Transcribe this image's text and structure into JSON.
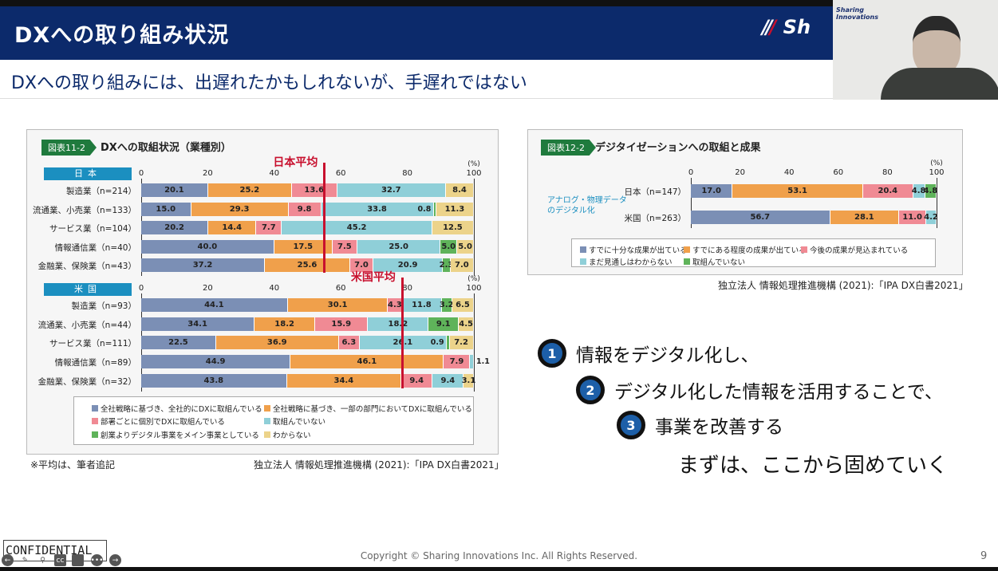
{
  "header": {
    "title": "DXへの取り組み状況",
    "logo": "Sh",
    "subtitle": "DXへの取り組みには、出遅れたかもしれないが、手遅れではない"
  },
  "colors": {
    "blue": "#7b8fb5",
    "orange": "#f0a04b",
    "pink": "#f08a94",
    "cyan": "#8fcfd8",
    "green": "#5fb35a",
    "yellow": "#ecd38a",
    "navy": "#0c2a6b",
    "avg": "#c8102e"
  },
  "webcam": {
    "brand": "Sharing Innovations"
  },
  "chart_data": [
    {
      "type": "bar",
      "stacked": true,
      "orientation": "horizontal",
      "tag": "図表11-2",
      "title": "DXへの取組状況（業種別）",
      "unit": "(%)",
      "xlim": [
        0,
        100
      ],
      "ticks": [
        "0",
        "20",
        "40",
        "60",
        "80",
        "100"
      ],
      "series_names": [
        "全社戦略に基づき、全社的にDXに取組んでいる",
        "全社戦略に基づき、一部の部門においてDXに取組んでいる",
        "部署ごとに個別でDXに取組んでいる",
        "取組んでいない",
        "創業よりデジタル事業をメイン事業としている",
        "わからない"
      ],
      "groups": [
        {
          "country": "日本",
          "average_label": "日本平均",
          "average": 55,
          "categories": [
            "製造業（n=214）",
            "流通業、小売業（n=133）",
            "サービス業（n=104）",
            "情報通信業（n=40）",
            "金融業、保険業（n=43）"
          ],
          "values": [
            [
              20.1,
              25.2,
              13.6,
              32.7,
              0,
              8.4
            ],
            [
              15.0,
              29.3,
              9.8,
              33.8,
              0.8,
              11.3
            ],
            [
              20.2,
              14.4,
              7.7,
              45.2,
              0,
              12.5
            ],
            [
              40.0,
              17.5,
              7.5,
              25.0,
              5.0,
              5.0
            ],
            [
              37.2,
              25.6,
              7.0,
              20.9,
              2.3,
              7.0
            ]
          ]
        },
        {
          "country": "米国",
          "average_label": "米国平均",
          "average": 78.4,
          "categories": [
            "製造業（n=93）",
            "流通業、小売業（n=44）",
            "サービス業（n=111）",
            "情報通信業（n=89）",
            "金融業、保険業（n=32）"
          ],
          "values": [
            [
              44.1,
              30.1,
              4.3,
              11.8,
              3.2,
              6.5
            ],
            [
              34.1,
              18.2,
              15.9,
              18.2,
              9.1,
              4.5
            ],
            [
              22.5,
              36.9,
              6.3,
              26.1,
              0.9,
              7.2
            ],
            [
              44.9,
              46.1,
              7.9,
              1.1,
              0,
              0
            ],
            [
              43.8,
              34.4,
              9.4,
              9.4,
              0,
              3.1
            ]
          ]
        }
      ],
      "note": "※平均は、筆者追記",
      "source": "独立法人 情報処理推進機構 (2021):「IPA DX白書2021」"
    },
    {
      "type": "bar",
      "stacked": true,
      "orientation": "horizontal",
      "tag": "図表12-2",
      "title": "デジタイゼーションへの取組と成果",
      "unit": "(%)",
      "xlim": [
        0,
        100
      ],
      "ticks": [
        "0",
        "20",
        "40",
        "60",
        "80",
        "100"
      ],
      "group_label": "アナログ・物理データのデジタル化",
      "series_names": [
        "すでに十分な成果が出ている",
        "すでにある程度の成果が出ている",
        "今後の成果が見込まれている",
        "まだ見通しはわからない",
        "取組んでいない"
      ],
      "categories": [
        "日本（n=147）",
        "米国（n=263）"
      ],
      "values": [
        [
          17.0,
          53.1,
          20.4,
          4.8,
          4.8
        ],
        [
          56.7,
          28.1,
          11.0,
          4.2,
          0
        ]
      ],
      "source": "独立法人 情報処理推進機構 (2021):「IPA DX白書2021」"
    }
  ],
  "points": [
    {
      "num": "1",
      "text": "情報をデジタル化し、"
    },
    {
      "num": "2",
      "text": "デジタル化した情報を活用することで、"
    },
    {
      "num": "3",
      "text": "事業を改善する"
    }
  ],
  "conclusion": "まずは、ここから固めていく",
  "footer": {
    "confidential": "CONFIDENTIAL",
    "copyright": "Copyright © Sharing Innovations Inc. All Rights Reserved.",
    "page": "9"
  }
}
